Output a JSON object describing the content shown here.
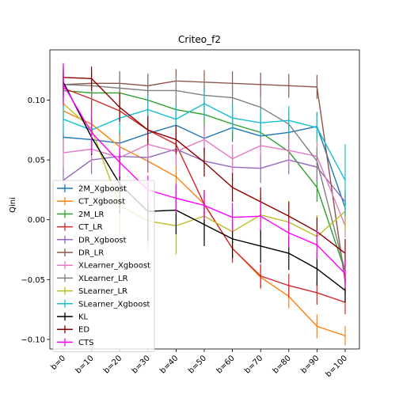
{
  "chart_data": {
    "type": "line",
    "title": "Criteo_f2",
    "xlabel": "",
    "ylabel": "Qini",
    "categories": [
      "b=0",
      "b=10",
      "b=20",
      "b=30",
      "b=40",
      "b=50",
      "b=60",
      "b=70",
      "b=80",
      "b=90",
      "b=100"
    ],
    "ylim": [
      -0.108,
      0.142
    ],
    "yticks": [
      -0.1,
      -0.05,
      0.0,
      0.05,
      0.1
    ],
    "ytick_labels": [
      "−0.10",
      "−0.05",
      "0.00",
      "0.05",
      "0.10"
    ],
    "grid": false,
    "legend_position": "lower-left",
    "series": [
      {
        "name": "2M_Xgboost",
        "color": "#1f77b4",
        "values": [
          0.069,
          0.067,
          0.064,
          0.072,
          0.079,
          0.068,
          0.077,
          0.07,
          0.073,
          0.078,
          0.01
        ],
        "errors": [
          0.012,
          0.012,
          0.012,
          0.012,
          0.012,
          0.012,
          0.012,
          0.012,
          0.012,
          0.012,
          0.012
        ]
      },
      {
        "name": "CT_Xgboost",
        "color": "#ff7f0e",
        "values": [
          0.091,
          0.08,
          0.061,
          0.049,
          0.036,
          0.013,
          -0.024,
          -0.048,
          -0.064,
          -0.089,
          -0.097
        ],
        "errors": [
          0.01,
          0.01,
          0.01,
          0.01,
          0.01,
          0.01,
          0.01,
          0.01,
          0.01,
          0.01,
          0.008
        ]
      },
      {
        "name": "2M_LR",
        "color": "#2ca02c",
        "values": [
          0.108,
          0.106,
          0.106,
          0.1,
          0.092,
          0.088,
          0.08,
          0.073,
          0.057,
          0.027,
          -0.043
        ],
        "errors": [
          0.012,
          0.012,
          0.012,
          0.012,
          0.012,
          0.012,
          0.012,
          0.012,
          0.012,
          0.012,
          0.01
        ]
      },
      {
        "name": "CT_LR",
        "color": "#d62728",
        "values": [
          0.11,
          0.101,
          0.091,
          0.075,
          0.063,
          0.013,
          -0.024,
          -0.047,
          -0.055,
          -0.061,
          -0.069
        ],
        "errors": [
          0.012,
          0.012,
          0.012,
          0.012,
          0.012,
          0.012,
          0.012,
          0.01,
          0.01,
          0.01,
          0.01
        ]
      },
      {
        "name": "DR_Xgboost",
        "color": "#9467bd",
        "values": [
          0.033,
          0.05,
          0.053,
          0.052,
          0.059,
          0.049,
          0.044,
          0.043,
          0.05,
          0.044,
          0.015
        ],
        "errors": [
          0.012,
          0.012,
          0.012,
          0.012,
          0.012,
          0.012,
          0.012,
          0.012,
          0.012,
          0.012,
          0.01
        ]
      },
      {
        "name": "DR_LR",
        "color": "#8c564b",
        "values": [
          0.113,
          0.114,
          0.114,
          0.112,
          0.116,
          0.115,
          0.114,
          0.113,
          0.112,
          0.111,
          -0.052
        ],
        "errors": [
          0.01,
          0.01,
          0.01,
          0.01,
          0.01,
          0.01,
          0.01,
          0.01,
          0.01,
          0.01,
          0.01
        ]
      },
      {
        "name": "XLearner_Xgboost",
        "color": "#e377c2",
        "values": [
          0.056,
          0.059,
          0.052,
          0.063,
          0.057,
          0.067,
          0.051,
          0.062,
          0.058,
          0.053,
          -0.005
        ],
        "errors": [
          0.012,
          0.012,
          0.012,
          0.012,
          0.012,
          0.012,
          0.012,
          0.012,
          0.012,
          0.012,
          0.01
        ]
      },
      {
        "name": "XLearner_LR",
        "color": "#7f7f7f",
        "values": [
          0.113,
          0.112,
          0.11,
          0.108,
          0.108,
          0.104,
          0.102,
          0.094,
          0.08,
          0.049,
          -0.043
        ],
        "errors": [
          0.012,
          0.012,
          0.012,
          0.012,
          0.012,
          0.012,
          0.012,
          0.012,
          0.012,
          0.012,
          0.01
        ]
      },
      {
        "name": "SLearner_LR",
        "color": "#bcbd22",
        "values": [
          0.097,
          0.076,
          0.012,
          -0.001,
          -0.005,
          0.003,
          -0.01,
          0.004,
          -0.002,
          -0.014,
          0.007
        ],
        "errors": [
          0.012,
          0.012,
          0.025,
          0.025,
          0.024,
          0.02,
          0.02,
          0.018,
          0.018,
          0.018,
          0.016
        ]
      },
      {
        "name": "SLearner_Xgboost",
        "color": "#17becf",
        "values": [
          0.084,
          0.075,
          0.085,
          0.092,
          0.084,
          0.097,
          0.085,
          0.081,
          0.083,
          0.077,
          0.033
        ],
        "errors": [
          0.012,
          0.012,
          0.012,
          0.012,
          0.012,
          0.012,
          0.012,
          0.012,
          0.012,
          0.012,
          0.03
        ]
      },
      {
        "name": "KL",
        "color": "#000000",
        "values": [
          0.115,
          0.069,
          0.03,
          0.007,
          0.008,
          -0.004,
          -0.016,
          -0.022,
          -0.028,
          -0.041,
          -0.059
        ],
        "errors": [
          0.012,
          0.015,
          0.025,
          0.025,
          0.02,
          0.018,
          0.016,
          0.014,
          0.014,
          0.014,
          0.01
        ]
      },
      {
        "name": "ED",
        "color": "#8b0000",
        "values": [
          0.119,
          0.118,
          0.094,
          0.075,
          0.067,
          0.048,
          0.027,
          0.015,
          0.003,
          -0.01,
          -0.028
        ],
        "errors": [
          0.01,
          0.01,
          0.012,
          0.012,
          0.012,
          0.012,
          0.012,
          0.012,
          0.012,
          0.012,
          0.012
        ]
      },
      {
        "name": "CTS",
        "color": "#ff00ff",
        "values": [
          0.113,
          0.073,
          0.048,
          0.025,
          0.018,
          0.012,
          0.002,
          0.003,
          -0.011,
          -0.021,
          -0.045
        ],
        "errors": [
          0.018,
          0.018,
          0.012,
          0.012,
          0.012,
          0.012,
          0.012,
          0.012,
          0.012,
          0.012,
          0.012
        ]
      }
    ]
  }
}
